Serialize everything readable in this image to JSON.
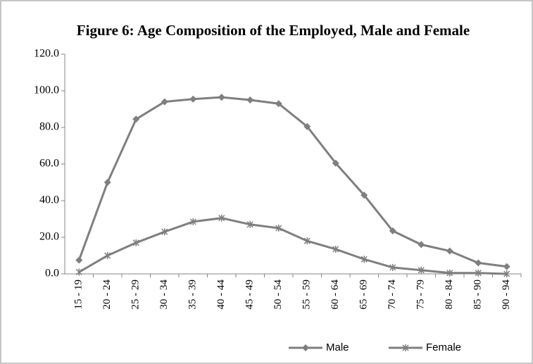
{
  "chart_data": {
    "type": "line",
    "title": "Figure 6: Age Composition of the Employed, Male and Female",
    "categories": [
      "15 - 19",
      "20 - 24",
      "25 - 29",
      "30 - 34",
      "35 - 39",
      "40 - 44",
      "45 - 49",
      "50 - 54",
      "55 - 59",
      "60 - 64",
      "65 - 69",
      "70 - 74",
      "75 - 79",
      "80 - 84",
      "85 - 90",
      "90 - 94"
    ],
    "series": [
      {
        "name": "Male",
        "color": "#7f7f7f",
        "marker": "diamond",
        "values": [
          7.5,
          50,
          84.5,
          94,
          95.5,
          96.5,
          95,
          93,
          80.5,
          60.5,
          43,
          23.5,
          16,
          12.5,
          6,
          4
        ]
      },
      {
        "name": "Female",
        "color": "#7f7f7f",
        "marker": "star",
        "values": [
          1,
          10,
          17,
          23,
          28.5,
          30.5,
          27,
          25,
          18,
          13.5,
          8,
          3.5,
          2,
          0.5,
          0.5,
          0
        ]
      }
    ],
    "ylim": [
      0,
      120
    ],
    "yticks": [
      {
        "value": 0,
        "label": "0.0"
      },
      {
        "value": 20,
        "label": "20.0"
      },
      {
        "value": 40,
        "label": "40.0"
      },
      {
        "value": 60,
        "label": "60.0"
      },
      {
        "value": 80,
        "label": "80.0"
      },
      {
        "value": 100,
        "label": "100.0"
      },
      {
        "value": 120,
        "label": "120.0"
      }
    ],
    "grid": false,
    "legend": "bottom"
  }
}
